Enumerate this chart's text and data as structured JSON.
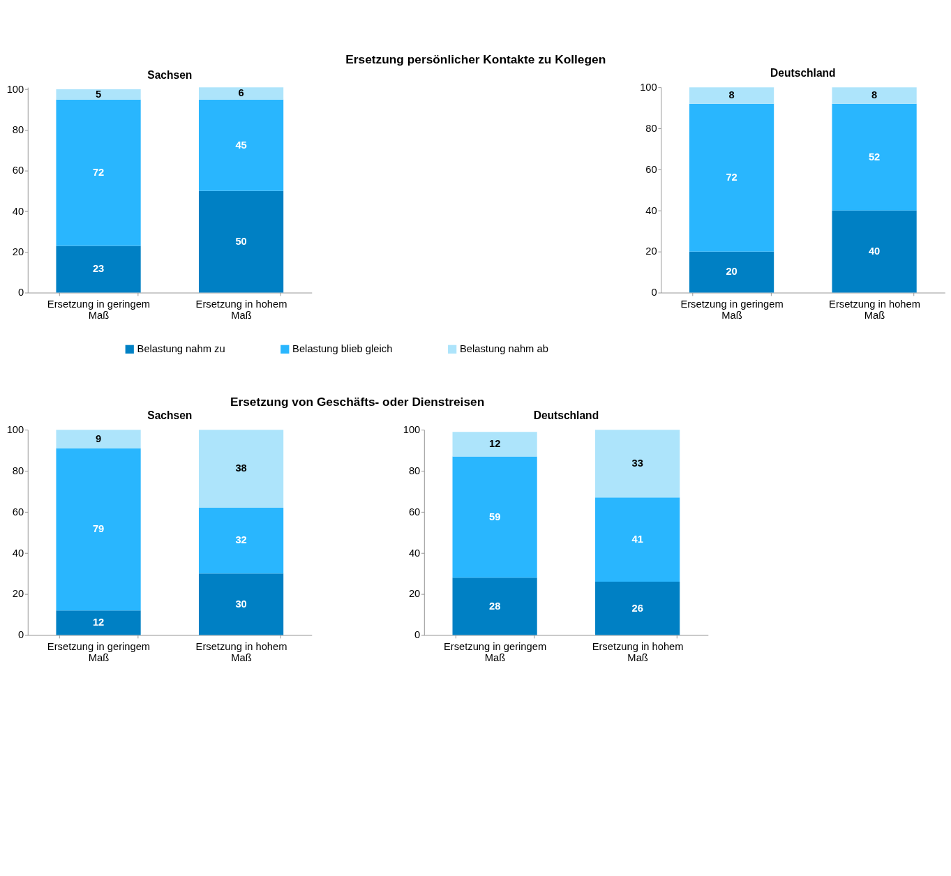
{
  "chart_data": [
    {
      "type": "bar",
      "stacked": true,
      "title": "Sachsen",
      "annotations": [
        "Ersetzung persönlicher Kontakte zu Kollegen"
      ],
      "categories": [
        "Ersetzung in geringem Maß",
        "Ersetzung in hohem Maß"
      ],
      "ylim": [
        0,
        101
      ],
      "yticks": [
        0,
        20,
        40,
        60,
        80,
        100
      ],
      "data_labels": true,
      "legend": "bottom",
      "series": [
        {
          "name": "Belastung nahm zu",
          "color": "#0080c4",
          "values": [
            23,
            50
          ]
        },
        {
          "name": "Belastung blieb gleich",
          "color": "#29b6fe",
          "values": [
            72,
            45
          ]
        },
        {
          "name": "Belastung nahm ab",
          "color": "#ade4fb",
          "values": [
            5,
            6
          ]
        }
      ]
    },
    {
      "type": "bar",
      "stacked": true,
      "title": "Deutschland",
      "categories": [
        "Ersetzung in geringem Maß",
        "Ersetzung in hohem Maß"
      ],
      "ylim": [
        0,
        100
      ],
      "yticks": [
        0,
        20,
        40,
        60,
        80,
        100
      ],
      "data_labels": true,
      "series": [
        {
          "color": "#0080c4",
          "values": [
            20,
            40
          ]
        },
        {
          "color": "#29b6fe",
          "values": [
            72,
            52
          ]
        },
        {
          "color": "#ade4fb",
          "values": [
            8,
            8
          ]
        }
      ]
    },
    {
      "type": "bar",
      "stacked": true,
      "title": "Sachsen",
      "annotations": [
        "Ersetzung von  Geschäfts- oder Dienstreisen"
      ],
      "categories": [
        "Ersetzung in geringem Maß",
        "Ersetzung in hohem Maß"
      ],
      "ylim": [
        0,
        100
      ],
      "yticks": [
        0,
        20,
        40,
        60,
        80,
        100
      ],
      "data_labels": true,
      "series": [
        {
          "color": "#0080c4",
          "values": [
            12,
            30
          ]
        },
        {
          "color": "#29b6fe",
          "values": [
            79,
            32
          ]
        },
        {
          "color": "#ade4fb",
          "values": [
            9,
            38
          ]
        }
      ]
    },
    {
      "type": "bar",
      "stacked": true,
      "title": "Deutschland",
      "categories": [
        "Ersetzung in geringem Maß",
        "Ersetzung in hohem Maß"
      ],
      "ylim": [
        0,
        100
      ],
      "yticks": [
        0,
        20,
        40,
        60,
        80,
        100
      ],
      "data_labels": true,
      "series": [
        {
          "color": "#0080c4",
          "values": [
            28,
            26
          ]
        },
        {
          "color": "#29b6fe",
          "values": [
            59,
            41
          ]
        },
        {
          "color": "#ade4fb",
          "values": [
            12,
            33
          ]
        }
      ]
    }
  ]
}
